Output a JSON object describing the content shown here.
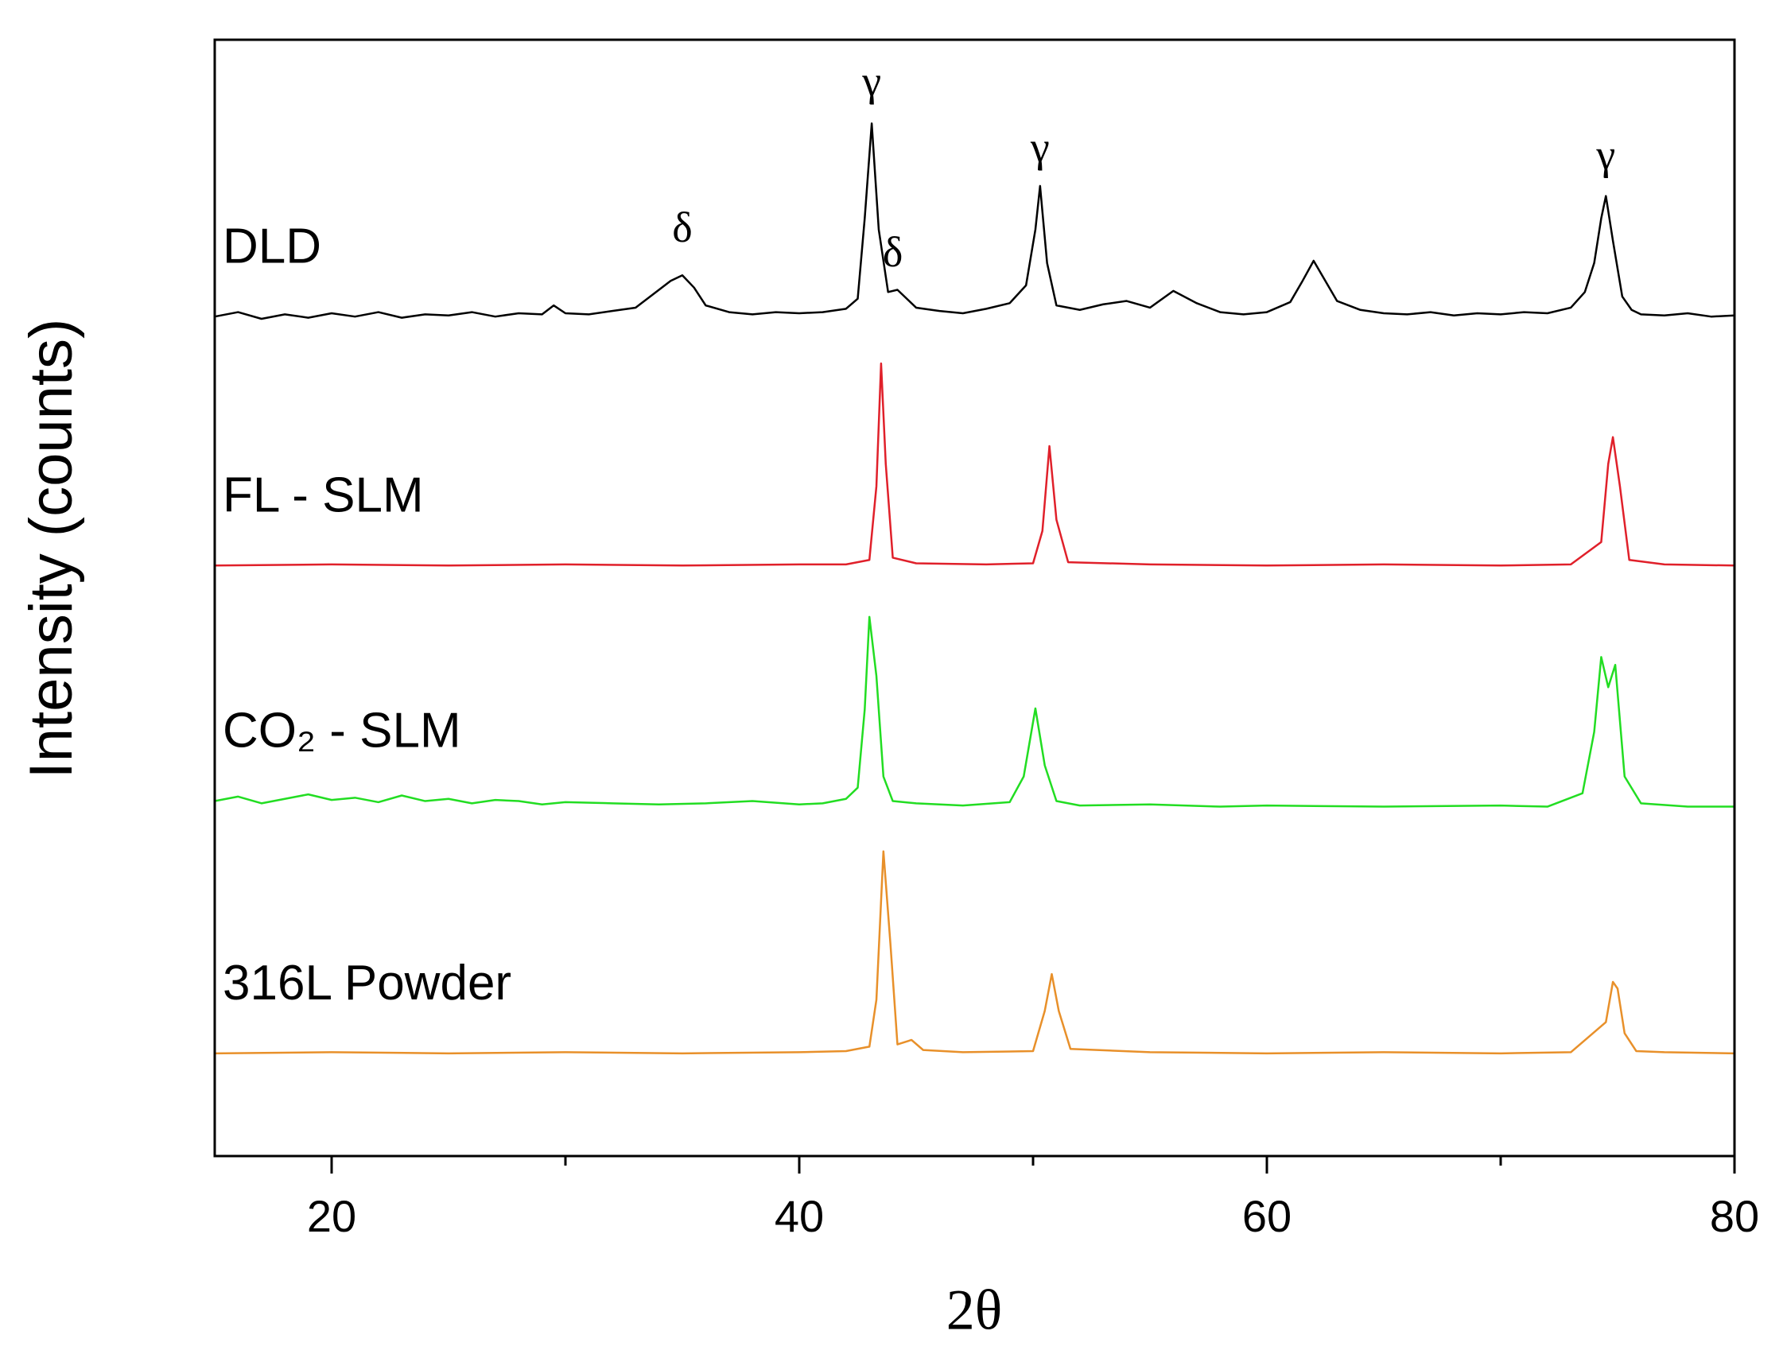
{
  "chart_data": {
    "type": "line",
    "xlabel": "2θ",
    "ylabel": "Intensity (counts)",
    "xlim": [
      15,
      80
    ],
    "xticks": [
      20,
      40,
      60,
      80
    ],
    "xminorticks": [
      30,
      50,
      70
    ],
    "ylim": [
      0,
      100
    ],
    "series": [
      {
        "name": "DLD",
        "color": "#000000",
        "x": [
          15,
          16,
          17,
          18,
          19,
          20,
          21,
          22,
          23,
          24,
          25,
          26,
          27,
          28,
          29,
          29.5,
          30,
          31,
          32,
          33,
          33.5,
          34,
          34.5,
          35,
          35.5,
          36,
          37,
          38,
          39,
          40,
          41,
          42,
          42.5,
          42.8,
          43.1,
          43.4,
          43.8,
          44.2,
          45,
          46,
          47,
          48,
          49,
          49.7,
          50.1,
          50.3,
          50.6,
          51,
          52,
          53,
          54,
          55,
          56,
          57,
          58,
          59,
          60,
          61,
          61.5,
          62,
          62.5,
          63,
          64,
          65,
          66,
          67,
          68,
          69,
          70,
          71,
          72,
          73,
          73.6,
          74,
          74.3,
          74.5,
          74.8,
          75.2,
          75.6,
          76,
          77,
          78,
          79,
          80
        ],
        "values": [
          75.2,
          75.6,
          75.0,
          75.4,
          75.1,
          75.5,
          75.2,
          75.6,
          75.1,
          75.4,
          75.3,
          75.6,
          75.2,
          75.5,
          75.4,
          76.2,
          75.5,
          75.4,
          75.7,
          76.0,
          76.8,
          77.6,
          78.4,
          78.9,
          77.8,
          76.2,
          75.6,
          75.4,
          75.6,
          75.5,
          75.6,
          75.9,
          76.8,
          84,
          92.5,
          83,
          77.4,
          77.6,
          76.0,
          75.7,
          75.5,
          75.9,
          76.4,
          78,
          83,
          86.9,
          80,
          76.2,
          75.8,
          76.3,
          76.6,
          76.0,
          77.5,
          76.4,
          75.6,
          75.4,
          75.6,
          76.5,
          78.3,
          80.2,
          78.4,
          76.6,
          75.8,
          75.5,
          75.4,
          75.6,
          75.3,
          75.5,
          75.4,
          75.6,
          75.5,
          76.0,
          77.4,
          80,
          84,
          86,
          82,
          77.0,
          75.8,
          75.4,
          75.3,
          75.5,
          75.2,
          75.3
        ]
      },
      {
        "name": "FL - SLM",
        "color": "#e0202a",
        "x": [
          15,
          20,
          25,
          30,
          35,
          40,
          42,
          43,
          43.3,
          43.5,
          43.7,
          44,
          45,
          48,
          50,
          50.4,
          50.7,
          51,
          51.5,
          55,
          60,
          65,
          70,
          73,
          74.3,
          74.6,
          74.8,
          75.1,
          75.5,
          77,
          80
        ],
        "values": [
          52.9,
          53.0,
          52.9,
          53.0,
          52.9,
          53.0,
          53.0,
          53.4,
          60,
          71,
          62,
          53.6,
          53.1,
          53.0,
          53.1,
          56,
          63.6,
          57,
          53.2,
          53.0,
          52.9,
          53.0,
          52.9,
          53.0,
          55,
          62,
          64.4,
          60,
          53.4,
          53.0,
          52.9
        ]
      },
      {
        "name": "CO₂ - SLM",
        "color": "#22dd22",
        "x": [
          15,
          16,
          17,
          18,
          19,
          20,
          21,
          22,
          23,
          24,
          25,
          26,
          27,
          28,
          29,
          30,
          32,
          34,
          36,
          38,
          40,
          41,
          42,
          42.5,
          42.8,
          43.0,
          43.3,
          43.6,
          44,
          45,
          47,
          49,
          49.6,
          50.1,
          50.5,
          51,
          52,
          55,
          58,
          60,
          65,
          70,
          72,
          73.5,
          74,
          74.3,
          74.6,
          74.9,
          75.3,
          76,
          78,
          80
        ],
        "values": [
          31.8,
          32.2,
          31.6,
          32.0,
          32.4,
          31.9,
          32.1,
          31.7,
          32.3,
          31.8,
          32.0,
          31.6,
          31.9,
          31.8,
          31.5,
          31.7,
          31.6,
          31.5,
          31.6,
          31.8,
          31.5,
          31.6,
          32.0,
          33,
          40,
          48.3,
          43,
          34,
          31.8,
          31.6,
          31.4,
          31.7,
          34,
          40.1,
          35,
          31.8,
          31.4,
          31.5,
          31.3,
          31.4,
          31.3,
          31.4,
          31.3,
          32.5,
          38,
          44.7,
          42,
          44,
          34,
          31.6,
          31.3,
          31.3
        ]
      },
      {
        "name": "316L Powder",
        "color": "#e8902a",
        "x": [
          15,
          20,
          25,
          30,
          35,
          40,
          42,
          43,
          43.3,
          43.6,
          43.9,
          44.2,
          44.8,
          45.3,
          47,
          50,
          50.5,
          50.8,
          51.1,
          51.6,
          55,
          60,
          65,
          70,
          73,
          74.5,
          74.8,
          75,
          75.3,
          75.8,
          77,
          80
        ],
        "values": [
          9.2,
          9.3,
          9.2,
          9.3,
          9.2,
          9.3,
          9.4,
          9.8,
          14,
          27.3,
          19,
          10.0,
          10.4,
          9.5,
          9.3,
          9.4,
          13,
          16.3,
          13,
          9.6,
          9.3,
          9.2,
          9.3,
          9.2,
          9.3,
          12,
          15.6,
          15,
          11,
          9.4,
          9.3,
          9.2
        ]
      }
    ],
    "annotations": [
      {
        "text": "γ",
        "x": 43.1,
        "y": 95.9
      },
      {
        "text": "γ",
        "x": 50.3,
        "y": 90
      },
      {
        "text": "γ",
        "x": 74.5,
        "y": 89.3
      },
      {
        "text": "δ",
        "x": 35,
        "y": 82.8
      },
      {
        "text": "δ",
        "x": 44,
        "y": 80.6
      }
    ]
  }
}
